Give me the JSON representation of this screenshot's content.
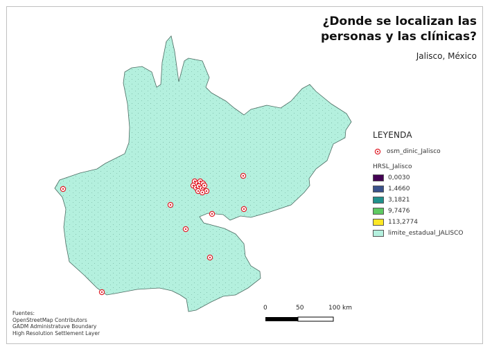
{
  "title_line1": "¿Donde se localizan las",
  "title_line2": "personas y las clínicas?",
  "subtitle": "Jalisco, México",
  "legend": {
    "title": "LEYENDA",
    "clinics_label": "osm_dinic_Jalisco",
    "hrsl_label": "HRSL_Jalisco",
    "classes": [
      {
        "label": "0,0030",
        "color": "#440154"
      },
      {
        "label": "1,4660",
        "color": "#3b528b"
      },
      {
        "label": "3,1821",
        "color": "#21918c"
      },
      {
        "label": "9,7476",
        "color": "#5ec962"
      },
      {
        "label": "113,2774",
        "color": "#fde725"
      }
    ],
    "boundary_label": "limite_estadual_JALISCO",
    "boundary_color": "#b4f0de"
  },
  "scale": {
    "label_0": "0",
    "label_50": "50",
    "label_100": "100 km"
  },
  "sources": {
    "heading": "Fuentes:",
    "line1": "OpenStreetMap Contributors",
    "line2": "GADM Administratuve Boundary",
    "line3": "High Resolution Settlement Layer"
  },
  "colors": {
    "clinic": "#e0202a",
    "state_fill": "#b4f0de",
    "state_stroke": "#4a6a60"
  }
}
